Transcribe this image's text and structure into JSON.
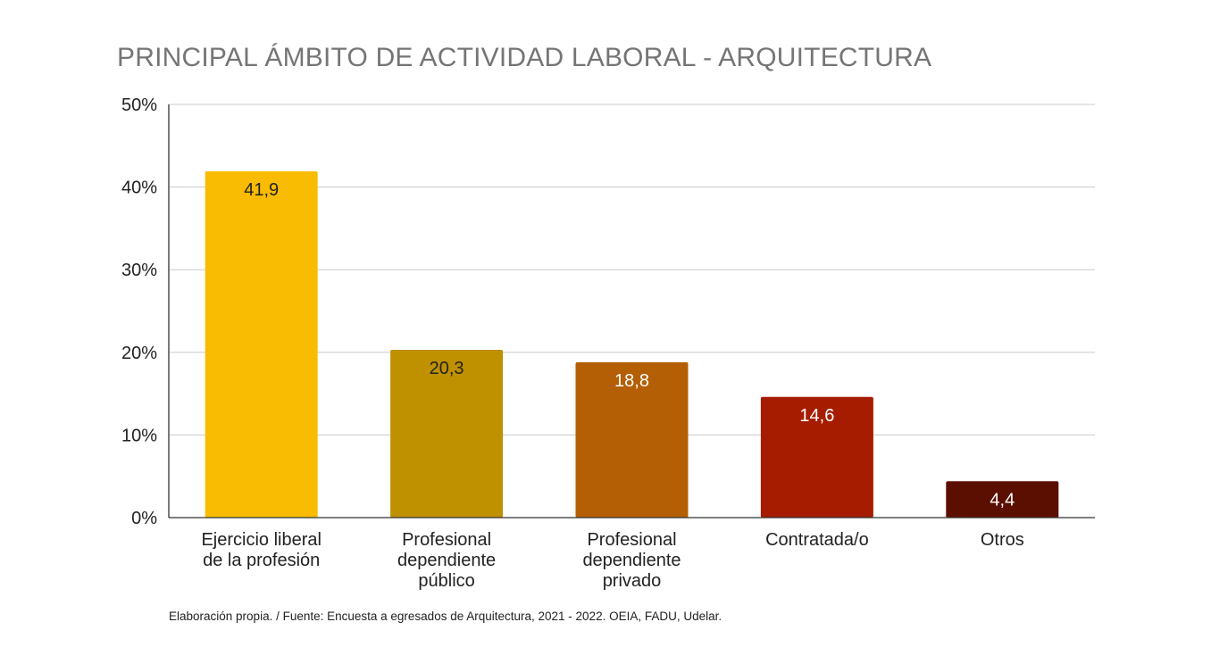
{
  "chart_data": {
    "type": "bar",
    "title": "PRINCIPAL ÁMBITO DE ACTIVIDAD LABORAL - ARQUITECTURA",
    "xlabel": "",
    "ylabel": "",
    "ylim": [
      0,
      50
    ],
    "yticks": [
      {
        "value": 0,
        "label": "0%"
      },
      {
        "value": 10,
        "label": "10%"
      },
      {
        "value": 20,
        "label": "20%"
      },
      {
        "value": 30,
        "label": "30%"
      },
      {
        "value": 40,
        "label": "40%"
      },
      {
        "value": 50,
        "label": "50%"
      }
    ],
    "grid": true,
    "legend": "none",
    "categories": [
      [
        "Ejercicio liberal",
        "de la profesión"
      ],
      [
        "Profesional",
        "dependiente",
        "público"
      ],
      [
        "Profesional",
        "dependiente",
        "privado"
      ],
      [
        "Contratada/o"
      ],
      [
        "Otros"
      ]
    ],
    "values": [
      41.9,
      20.3,
      18.8,
      14.6,
      4.4
    ],
    "data_labels": [
      "41,9",
      "20,3",
      "18,8",
      "14,6",
      "4,4"
    ],
    "bar_colors": [
      "#f9bc02",
      "#bf9000",
      "#b45f06",
      "#a61c00",
      "#5b0f00"
    ],
    "label_colors": [
      "#222222",
      "#222222",
      "#ffffff",
      "#ffffff",
      "#ffffff"
    ]
  },
  "footer": "Elaboración propia. / Fuente: Encuesta a egresados de Arquitectura, 2021 - 2022. OEIA, FADU, Udelar."
}
